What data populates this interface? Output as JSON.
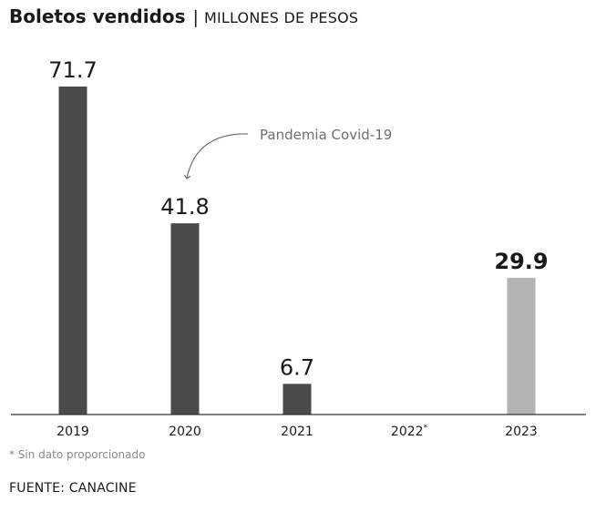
{
  "header": {
    "title": "Boletos vendidos",
    "separator": "|",
    "subtitle": "MILLONES DE PESOS"
  },
  "annotation": {
    "text": "Pandemia Covid-19"
  },
  "footnote": "* Sin dato proporcionado",
  "source": "FUENTE: CANACINE",
  "colors": {
    "bar_dark": "#4a4a4a",
    "bar_highlight": "#b3b3b3",
    "axis": "#333333",
    "annotation": "#6e6e6e"
  },
  "chart_data": {
    "type": "bar",
    "title": "Boletos vendidos",
    "subtitle": "MILLONES DE PESOS",
    "categories": [
      "2019",
      "2020",
      "2021",
      "2022*",
      "2023"
    ],
    "values": [
      71.7,
      41.8,
      6.7,
      null,
      29.9
    ],
    "value_labels": [
      "71.7",
      "41.8",
      "6.7",
      "",
      "29.9"
    ],
    "highlight_index": 4,
    "ylim": [
      0,
      75
    ],
    "grid": false,
    "legend": "none",
    "xlabel": "",
    "ylabel": ""
  }
}
